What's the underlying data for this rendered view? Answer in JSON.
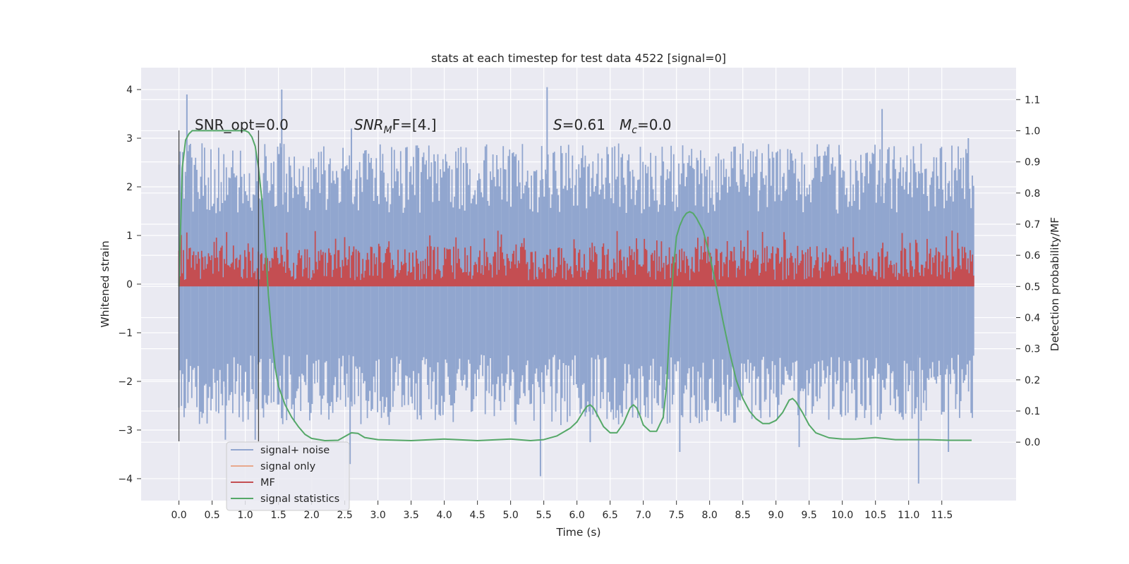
{
  "chart_data": {
    "type": "line",
    "title": "stats at each timestep for test data 4522 [signal=0]",
    "xlabel": "Time (s)",
    "ylabel": "Whitened strain",
    "y2label": "Detection probability/MF",
    "xlim": [
      -0.57,
      12.62
    ],
    "ylim": [
      -4.45,
      4.45
    ],
    "y2lim": [
      -0.1875,
      1.2025
    ],
    "x_ticks": [
      0.0,
      0.5,
      1.0,
      1.5,
      2.0,
      2.5,
      3.0,
      3.5,
      4.0,
      4.5,
      5.0,
      5.5,
      6.0,
      6.5,
      7.0,
      7.5,
      8.0,
      8.5,
      9.0,
      9.5,
      10.0,
      10.5,
      11.0,
      11.5
    ],
    "x_tick_labels": [
      "0.0",
      "0.5",
      "1.0",
      "1.5",
      "2.0",
      "2.5",
      "3.0",
      "3.5",
      "4.0",
      "4.5",
      "5.0",
      "5.5",
      "6.0",
      "6.5",
      "7.0",
      "7.5",
      "8.0",
      "8.5",
      "9.0",
      "9.5",
      "10.0",
      "10.5",
      "11.0",
      "11.5"
    ],
    "y_ticks": [
      4,
      3,
      2,
      1,
      0,
      -1,
      -2,
      -3,
      -4
    ],
    "y_tick_labels": [
      "4",
      "3",
      "2",
      "1",
      "0",
      "−1",
      "−2",
      "−3",
      "−4"
    ],
    "y2_ticks": [
      1.1,
      1.0,
      0.9,
      0.8,
      0.7,
      0.6,
      0.5,
      0.4,
      0.3,
      0.2,
      0.1,
      0.0
    ],
    "y2_tick_labels": [
      "1.1",
      "1.0",
      "0.9",
      "0.8",
      "0.7",
      "0.6",
      "0.5",
      "0.4",
      "0.3",
      "0.2",
      "0.1",
      "0.0"
    ],
    "grid": true,
    "legend_position": "lower-left",
    "annotations": {
      "snr_opt": "SNR_opt=0.0",
      "snr_mf_base": "SNR",
      "snr_mf_sub": "M",
      "snr_mf_rest": "F=[4.]",
      "s_symbol": "S",
      "s_value": "=0.61",
      "mc_base": "M",
      "mc_sub": "c",
      "mc_value": "=0.0"
    },
    "vertical_lines": [
      0.0,
      1.2
    ],
    "colors": {
      "signal_noise": "#91a6cf",
      "signal_only": "#e8a88c",
      "mf": "#c44e52",
      "statistics": "#55a868",
      "background": "#eaeaf2",
      "grid": "#ffffff"
    },
    "series": [
      {
        "name": "signal+ noise",
        "axis": "left",
        "style": "noise-envelope",
        "x_range": [
          0.0,
          11.98
        ],
        "typical_band": [
          -1.8,
          1.8
        ],
        "spikes": [
          [
            0.12,
            3.9
          ],
          [
            0.7,
            -3.2
          ],
          [
            1.55,
            4.0
          ],
          [
            1.15,
            -3.2
          ],
          [
            2.6,
            3.2
          ],
          [
            2.58,
            -3.7
          ],
          [
            5.55,
            4.05
          ],
          [
            5.45,
            -3.95
          ],
          [
            6.2,
            -3.25
          ],
          [
            7.55,
            -3.45
          ],
          [
            9.35,
            -3.35
          ],
          [
            10.6,
            3.6
          ],
          [
            11.15,
            -4.1
          ],
          [
            11.6,
            -3.45
          ],
          [
            11.9,
            3.0
          ]
        ]
      },
      {
        "name": "signal only",
        "axis": "left",
        "x": [
          0.0,
          11.98
        ],
        "y": [
          0.0,
          0.0
        ]
      },
      {
        "name": "MF",
        "axis": "right",
        "style": "noise-envelope",
        "x_range": [
          0.0,
          11.98
        ],
        "typical_band": [
          0.5,
          0.63
        ],
        "peak": 0.68
      },
      {
        "name": "signal statistics",
        "axis": "right",
        "x": [
          0.0,
          0.05,
          0.1,
          0.15,
          0.2,
          0.3,
          0.5,
          0.8,
          1.0,
          1.05,
          1.1,
          1.15,
          1.2,
          1.25,
          1.3,
          1.35,
          1.4,
          1.45,
          1.5,
          1.6,
          1.7,
          1.8,
          1.9,
          2.0,
          2.2,
          2.4,
          2.6,
          2.7,
          2.8,
          3.0,
          3.5,
          4.0,
          4.5,
          5.0,
          5.3,
          5.5,
          5.7,
          5.9,
          6.0,
          6.1,
          6.15,
          6.2,
          6.25,
          6.3,
          6.4,
          6.5,
          6.6,
          6.7,
          6.8,
          6.85,
          6.9,
          6.95,
          7.0,
          7.1,
          7.2,
          7.3,
          7.35,
          7.4,
          7.45,
          7.5,
          7.55,
          7.6,
          7.65,
          7.7,
          7.75,
          7.8,
          7.85,
          7.9,
          8.0,
          8.1,
          8.2,
          8.3,
          8.4,
          8.5,
          8.6,
          8.7,
          8.8,
          8.9,
          9.0,
          9.1,
          9.2,
          9.25,
          9.3,
          9.4,
          9.5,
          9.6,
          9.8,
          10.0,
          10.2,
          10.5,
          10.8,
          11.0,
          11.3,
          11.6,
          11.95
        ],
        "y": [
          0.5,
          0.88,
          0.97,
          0.99,
          1.0,
          1.0,
          1.0,
          1.0,
          1.0,
          0.995,
          0.98,
          0.95,
          0.88,
          0.78,
          0.64,
          0.47,
          0.34,
          0.24,
          0.18,
          0.12,
          0.08,
          0.05,
          0.025,
          0.012,
          0.005,
          0.006,
          0.03,
          0.028,
          0.015,
          0.008,
          0.005,
          0.01,
          0.005,
          0.01,
          0.005,
          0.008,
          0.02,
          0.045,
          0.065,
          0.1,
          0.115,
          0.12,
          0.11,
          0.09,
          0.05,
          0.03,
          0.03,
          0.06,
          0.11,
          0.12,
          0.11,
          0.085,
          0.055,
          0.035,
          0.035,
          0.08,
          0.18,
          0.38,
          0.55,
          0.66,
          0.695,
          0.72,
          0.735,
          0.74,
          0.735,
          0.72,
          0.7,
          0.68,
          0.6,
          0.5,
          0.39,
          0.29,
          0.2,
          0.14,
          0.1,
          0.075,
          0.06,
          0.06,
          0.07,
          0.095,
          0.135,
          0.14,
          0.13,
          0.095,
          0.055,
          0.03,
          0.014,
          0.01,
          0.01,
          0.015,
          0.008,
          0.008,
          0.008,
          0.006,
          0.006
        ]
      }
    ]
  }
}
